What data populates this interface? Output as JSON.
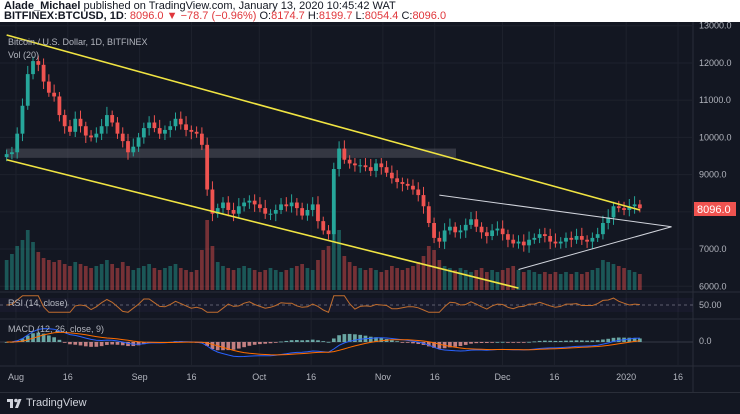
{
  "header": {
    "author": "Alade_Michael",
    "published": "published on TradingView.com, January 13, 2020 10:45:42 WAT",
    "symbol": "BITFINEX:BTCUSD, 1D",
    "close_value": "8096.0",
    "change": "▼ −78.7 (−0.96%)",
    "ohlc": {
      "o_label": "O:",
      "o": "8174.7",
      "h_label": "H:",
      "h": "8199.7",
      "l_label": "L:",
      "l": "8054.4",
      "c_label": "C:",
      "c": "8096.0"
    }
  },
  "legend": {
    "title": "Bitcoin / U.S. Dollar, 1D, BITFINEX",
    "vol": "Vol (20)",
    "rsi": "RSI (14, close)",
    "macd": "MACD (12, 26, close, 9)"
  },
  "price_badge": "8096.0",
  "footer": {
    "brand": "TradingView"
  },
  "colors": {
    "bg": "#131722",
    "up": "#26a69a",
    "down": "#ef5350",
    "trendline": "#f0e442",
    "triangle": "#d1d4dc",
    "badge": "#ef5350",
    "rsi": "#c06d2e",
    "macd": "#2962ff",
    "signal": "#ff6d00"
  },
  "chart_data": {
    "type": "candlestick",
    "y_axis_ticks": [
      "13000.0",
      "12000.0",
      "11000.0",
      "10000.0",
      "9000.0",
      "8000.0",
      "7000.0",
      "6000.0"
    ],
    "ylim": [
      5900,
      13100
    ],
    "x_axis_ticks": [
      "Aug",
      "16",
      "Sep",
      "16",
      "Oct",
      "16",
      "Nov",
      "16",
      "Dec",
      "16",
      "2020",
      "16"
    ],
    "rsi_ticks": [
      "50.00"
    ],
    "macd_ticks": [
      "0.0"
    ],
    "price_path": [
      9550,
      9600,
      10100,
      10850,
      11700,
      12050,
      11950,
      11500,
      11200,
      11100,
      10600,
      10300,
      10150,
      10500,
      10300,
      10050,
      10000,
      10100,
      10300,
      10600,
      10400,
      10100,
      9900,
      9600,
      9750,
      10000,
      10250,
      10400,
      10250,
      10100,
      10200,
      10300,
      10500,
      10350,
      10200,
      10150,
      10100,
      9800,
      8600,
      7950,
      8100,
      8250,
      8050,
      7950,
      8150,
      8250,
      8300,
      8200,
      8100,
      7950,
      7950,
      8050,
      8200,
      8150,
      8250,
      8100,
      7900,
      8050,
      8200,
      7750,
      7500,
      7400,
      9150,
      9700,
      9400,
      9300,
      9250,
      9250,
      9200,
      9100,
      9300,
      9200,
      9050,
      8900,
      8800,
      8750,
      8700,
      8600,
      8450,
      8150,
      7700,
      7300,
      7200,
      7500,
      7600,
      7450,
      7500,
      7650,
      7800,
      7600,
      7450,
      7350,
      7500,
      7550,
      7400,
      7250,
      7150,
      7200,
      7100,
      7250,
      7300,
      7400,
      7350,
      7200,
      7150,
      7200,
      7300,
      7250,
      7350,
      7250,
      7200,
      7300,
      7400,
      7700,
      7850,
      8150,
      8100,
      8050,
      8150,
      8200,
      8096
    ],
    "volume": [
      30,
      36,
      44,
      50,
      60,
      48,
      38,
      32,
      30,
      28,
      30,
      26,
      24,
      28,
      26,
      24,
      22,
      24,
      26,
      30,
      26,
      22,
      28,
      24,
      20,
      22,
      24,
      26,
      22,
      20,
      22,
      24,
      26,
      22,
      20,
      18,
      20,
      40,
      70,
      44,
      28,
      24,
      22,
      20,
      22,
      24,
      22,
      20,
      18,
      20,
      22,
      20,
      18,
      20,
      22,
      24,
      26,
      22,
      20,
      30,
      40,
      44,
      90,
      60,
      34,
      28,
      24,
      22,
      20,
      22,
      20,
      18,
      20,
      24,
      22,
      20,
      22,
      24,
      28,
      34,
      44,
      40,
      30,
      24,
      22,
      20,
      22,
      20,
      18,
      20,
      22,
      18,
      20,
      18,
      20,
      22,
      24,
      20,
      18,
      20,
      18,
      16,
      18,
      16,
      18,
      16,
      18,
      16,
      18,
      16,
      18,
      20,
      22,
      30,
      28,
      26,
      24,
      22,
      20,
      18,
      16
    ],
    "trendlines": {
      "channel_upper": [
        [
          0,
          12750
        ],
        [
          120,
          8050
        ]
      ],
      "channel_lower": [
        [
          0,
          9400
        ],
        [
          97,
          5950
        ]
      ],
      "triangle_upper": [
        [
          82,
          8450
        ],
        [
          126,
          7600
        ]
      ],
      "triangle_lower": [
        [
          97,
          6450
        ],
        [
          126,
          7600
        ]
      ]
    },
    "resistance_zone": [
      9450,
      9700
    ],
    "rsi_level": 50,
    "macd_zero": 0
  }
}
